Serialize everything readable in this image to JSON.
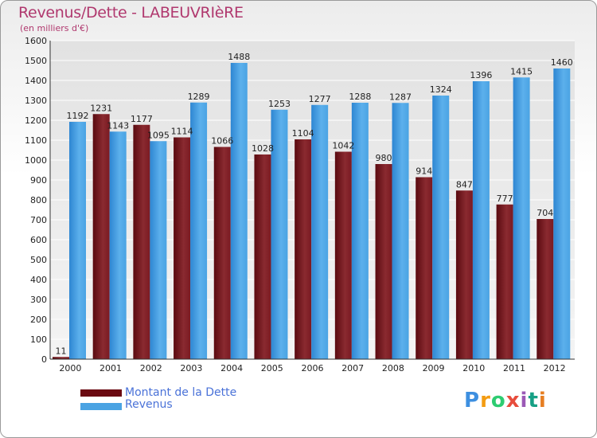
{
  "title": "Revenus/Dette - LABEUVRIèRE",
  "subtitle": "(en milliers d'€)",
  "legend": {
    "dette": "Montant de la Dette",
    "revenus": "Revenus"
  },
  "logo_text": "Proxiti",
  "colors": {
    "dette": "#7a1620",
    "revenus": "#4aa3e3",
    "title": "#b0386e"
  },
  "chart_data": {
    "type": "bar",
    "categories": [
      "2000",
      "2001",
      "2002",
      "2003",
      "2004",
      "2005",
      "2006",
      "2007",
      "2008",
      "2009",
      "2010",
      "2011",
      "2012"
    ],
    "series": [
      {
        "name": "Montant de la Dette",
        "values": [
          11,
          1231,
          1177,
          1114,
          1066,
          1028,
          1104,
          1042,
          980,
          914,
          847,
          777,
          704
        ]
      },
      {
        "name": "Revenus",
        "values": [
          1192,
          1143,
          1095,
          1289,
          1488,
          1253,
          1277,
          1288,
          1287,
          1324,
          1396,
          1415,
          1460
        ]
      }
    ],
    "title": "Revenus/Dette - LABEUVRIèRE",
    "ylabel": "(en milliers d'€)",
    "ylim": [
      0,
      1600
    ],
    "yticks": [
      0,
      100,
      200,
      300,
      400,
      500,
      600,
      700,
      800,
      900,
      1000,
      1100,
      1200,
      1300,
      1400,
      1500,
      1600
    ],
    "grid": true,
    "legend_position": "bottom-left"
  }
}
